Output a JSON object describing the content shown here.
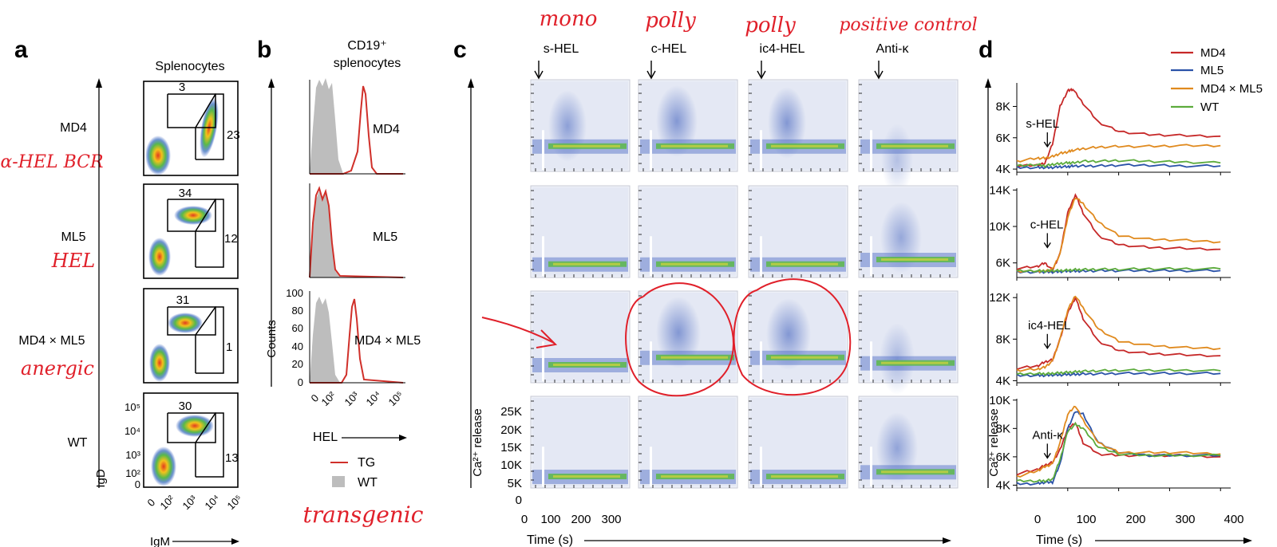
{
  "panel_a": {
    "letter": "a",
    "title": "Splenocytes",
    "rows": [
      {
        "label": "MD4",
        "gate_top": "3",
        "gate_right": "23",
        "note": "α-HEL BCR"
      },
      {
        "label": "ML5",
        "gate_top": "34",
        "gate_right": "12",
        "note": "HEL"
      },
      {
        "label": "MD4 × ML5",
        "gate_top": "31",
        "gate_right": "1",
        "note": "anergic"
      },
      {
        "label": "WT",
        "gate_top": "30",
        "gate_right": "13",
        "note": ""
      }
    ],
    "y_axis_label": "IgD",
    "x_axis_label": "IgM",
    "ticks": [
      "0",
      "10²",
      "10³",
      "10⁴",
      "10⁵"
    ]
  },
  "panel_b": {
    "letter": "b",
    "title_line1": "CD19⁺",
    "title_line2": "splenocytes",
    "rows": [
      "MD4",
      "ML5",
      "MD4 × ML5"
    ],
    "y_axis_label": "Counts",
    "y_ticks": [
      "0",
      "20",
      "40",
      "60",
      "80",
      "100"
    ],
    "x_ticks": [
      "0",
      "10²",
      "10³",
      "10⁴",
      "10⁵"
    ],
    "x_axis_label": "HEL",
    "legend": [
      {
        "label": "TG",
        "color": "#d0302a"
      },
      {
        "label": "WT",
        "color": "#bdbdbd"
      }
    ],
    "note": "transgenic"
  },
  "panel_c": {
    "letter": "c",
    "columns": [
      {
        "stimulus": "s-HEL",
        "note": "mono"
      },
      {
        "stimulus": "c-HEL",
        "note": "polly"
      },
      {
        "stimulus": "ic4-HEL",
        "note": "polly"
      },
      {
        "stimulus": "Anti-κ",
        "note": "positive control"
      }
    ],
    "y_axis_label": "Ca²⁺ release",
    "y_ticks": [
      "0",
      "5K",
      "10K",
      "15K",
      "20K",
      "25K"
    ],
    "x_ticks": [
      "0",
      "100",
      "200",
      "300"
    ],
    "x_axis_label": "Time (s)"
  },
  "panel_d": {
    "letter": "d",
    "y_axis_label": "Ca²⁺ release",
    "x_axis_label": "Time (s)",
    "x_ticks": [
      "0",
      "100",
      "200",
      "300",
      "400"
    ]
  },
  "colors": {
    "MD4": "#c62828",
    "ML5": "#2a52a8",
    "MD4xML5": "#e08a1e",
    "WT": "#5cab3c",
    "annotation": "#e0202a"
  },
  "chart_data": [
    {
      "type": "line",
      "title": "s-HEL",
      "xlabel": "Time (s)",
      "ylabel": "Ca²⁺ release",
      "xlim": [
        0,
        420
      ],
      "ylim": [
        3800,
        9500
      ],
      "y_ticks": [
        "4K",
        "6K",
        "8K"
      ],
      "y_tick_values": [
        4000,
        6000,
        8000
      ],
      "stim_time": 60,
      "x": [
        0,
        40,
        55,
        70,
        85,
        100,
        110,
        130,
        160,
        200,
        260,
        320,
        400
      ],
      "series": [
        {
          "name": "MD4",
          "values": [
            4200,
            4250,
            4350,
            5600,
            8000,
            9000,
            9100,
            8200,
            7000,
            6400,
            6200,
            6150,
            6100
          ]
        },
        {
          "name": "ML5",
          "values": [
            4100,
            4100,
            4100,
            4100,
            4150,
            4150,
            4200,
            4200,
            4200,
            4250,
            4250,
            4200,
            4200
          ]
        },
        {
          "name": "MD4 × ML5",
          "values": [
            4500,
            4700,
            4700,
            4800,
            5000,
            5100,
            5200,
            5300,
            5400,
            5450,
            5450,
            5500,
            5500
          ]
        },
        {
          "name": "WT",
          "values": [
            4200,
            4300,
            4200,
            4300,
            4350,
            4400,
            4400,
            4500,
            4500,
            4550,
            4500,
            4450,
            4400
          ]
        }
      ],
      "legend": [
        "MD4",
        "ML5",
        "MD4 × ML5",
        "WT"
      ]
    },
    {
      "type": "line",
      "title": "c-HEL",
      "xlabel": "Time (s)",
      "ylabel": "Ca²⁺ release",
      "xlim": [
        0,
        420
      ],
      "ylim": [
        4400,
        14200
      ],
      "y_ticks": [
        "6K",
        "10K",
        "14K"
      ],
      "y_tick_values": [
        6000,
        10000,
        14000
      ],
      "stim_time": 60,
      "x": [
        0,
        40,
        55,
        70,
        85,
        100,
        115,
        130,
        160,
        200,
        260,
        320,
        400
      ],
      "series": [
        {
          "name": "MD4",
          "values": [
            5400,
            5600,
            6000,
            5200,
            7000,
            11500,
            13500,
            11500,
            9000,
            8000,
            7700,
            7600,
            7500
          ]
        },
        {
          "name": "ML5",
          "values": [
            5000,
            5000,
            5000,
            5000,
            5050,
            5100,
            5100,
            5100,
            5150,
            5150,
            5150,
            5150,
            5150
          ]
        },
        {
          "name": "MD4 × ML5",
          "values": [
            5100,
            5100,
            5100,
            5300,
            7000,
            11000,
            13200,
            12500,
            10500,
            9000,
            8600,
            8500,
            8300
          ]
        },
        {
          "name": "WT",
          "values": [
            5100,
            5150,
            5100,
            5150,
            5150,
            5200,
            5250,
            5250,
            5300,
            5300,
            5350,
            5350,
            5350
          ]
        }
      ]
    },
    {
      "type": "line",
      "title": "ic4-HEL",
      "xlabel": "Time (s)",
      "ylabel": "Ca²⁺ release",
      "xlim": [
        0,
        420
      ],
      "ylim": [
        3800,
        12400
      ],
      "y_ticks": [
        "4K",
        "8K",
        "12K"
      ],
      "y_tick_values": [
        4000,
        8000,
        12000
      ],
      "stim_time": 60,
      "x": [
        0,
        40,
        55,
        70,
        85,
        100,
        115,
        130,
        160,
        200,
        260,
        320,
        400
      ],
      "series": [
        {
          "name": "MD4",
          "values": [
            5200,
            5400,
            5800,
            6000,
            8000,
            10500,
            12000,
            10000,
            7800,
            6900,
            6600,
            6500,
            6400
          ]
        },
        {
          "name": "ML5",
          "values": [
            4500,
            4500,
            4500,
            4550,
            4550,
            4600,
            4600,
            4650,
            4650,
            4700,
            4700,
            4700,
            4700
          ]
        },
        {
          "name": "MD4 × ML5",
          "values": [
            5000,
            5100,
            5300,
            5900,
            8000,
            10800,
            12200,
            11000,
            9000,
            7800,
            7400,
            7200,
            7100
          ]
        },
        {
          "name": "WT",
          "values": [
            4600,
            4700,
            4650,
            4700,
            4750,
            4800,
            4850,
            4900,
            4950,
            5000,
            5000,
            5000,
            4950
          ]
        }
      ]
    },
    {
      "type": "line",
      "title": "Anti-κ",
      "xlabel": "Time (s)",
      "ylabel": "Ca²⁺ release",
      "xlim": [
        0,
        420
      ],
      "ylim": [
        3800,
        10100
      ],
      "y_ticks": [
        "4K",
        "6K",
        "8K",
        "10K"
      ],
      "y_tick_values": [
        4000,
        6000,
        8000,
        10000
      ],
      "stim_time": 60,
      "x": [
        0,
        40,
        55,
        70,
        85,
        100,
        115,
        130,
        160,
        200,
        260,
        320,
        400
      ],
      "series": [
        {
          "name": "MD4",
          "values": [
            4800,
            5100,
            5400,
            5600,
            6500,
            8000,
            8400,
            7000,
            6200,
            6100,
            6100,
            6100,
            6000
          ]
        },
        {
          "name": "ML5",
          "values": [
            4100,
            4100,
            4200,
            4200,
            5500,
            8000,
            9200,
            9000,
            7000,
            6300,
            6100,
            6100,
            6100
          ]
        },
        {
          "name": "MD4 × ML5",
          "values": [
            4600,
            5000,
            5300,
            5500,
            7000,
            9000,
            9600,
            8600,
            7000,
            6300,
            6300,
            6300,
            6200
          ]
        },
        {
          "name": "WT",
          "values": [
            4300,
            4300,
            4300,
            4400,
            5800,
            7800,
            8300,
            8000,
            6700,
            6200,
            6100,
            6100,
            6100
          ]
        }
      ]
    }
  ]
}
